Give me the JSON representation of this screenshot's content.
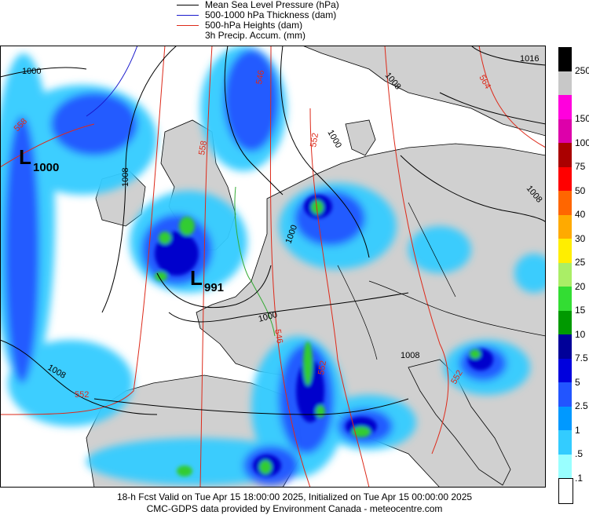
{
  "legend": [
    {
      "label": "Mean Sea Level Pressure (hPa)",
      "color": "#000000"
    },
    {
      "label": "500-1000 hPa Thickness (dam)",
      "color": "#1a1acc"
    },
    {
      "label": "500-hPa Heights (dam)",
      "color": "#dd2a1a"
    },
    {
      "label": "3h Precip. Accum. (mm)",
      "color": ""
    }
  ],
  "scale": [
    {
      "label": "250",
      "color": "#000000"
    },
    {
      "label": "",
      "color": "#c8c8c8"
    },
    {
      "label": "150",
      "color": "#ff00dd"
    },
    {
      "label": "100",
      "color": "#dd00aa"
    },
    {
      "label": "75",
      "color": "#aa0000"
    },
    {
      "label": "50",
      "color": "#ff0000"
    },
    {
      "label": "40",
      "color": "#ff6600"
    },
    {
      "label": "30",
      "color": "#ffaa00"
    },
    {
      "label": "25",
      "color": "#ffee00"
    },
    {
      "label": "20",
      "color": "#aaee66"
    },
    {
      "label": "15",
      "color": "#33dd33"
    },
    {
      "label": "10",
      "color": "#009900"
    },
    {
      "label": "7.5",
      "color": "#000099"
    },
    {
      "label": "5",
      "color": "#0000dd"
    },
    {
      "label": "2.5",
      "color": "#2255ff"
    },
    {
      "label": "1",
      "color": "#0099ff"
    },
    {
      "label": ".5",
      "color": "#33ccff"
    },
    {
      "label": ".1",
      "color": "#99ffff"
    },
    {
      "label": "",
      "color": "#ffffff"
    }
  ],
  "map_labels": {
    "low1_letter": "L",
    "low1_value": "1000",
    "low2_letter": "L",
    "low2_value": "991",
    "isobars": [
      "1000",
      "1000",
      "1008",
      "1008",
      "1000",
      "1016",
      "1008",
      "1008",
      "1000",
      "1008"
    ],
    "heights": [
      "558",
      "552",
      "546",
      "552",
      "564",
      "546",
      "552",
      "558",
      "552"
    ]
  },
  "footer": {
    "line1": "18-h Fcst Valid on Tue Apr 15 18:00:00 2025, Initialized on Tue Apr 15 00:00:00 2025",
    "line2": "CMC-GDPS data provided by Environment Canada - meteocentre.com"
  }
}
